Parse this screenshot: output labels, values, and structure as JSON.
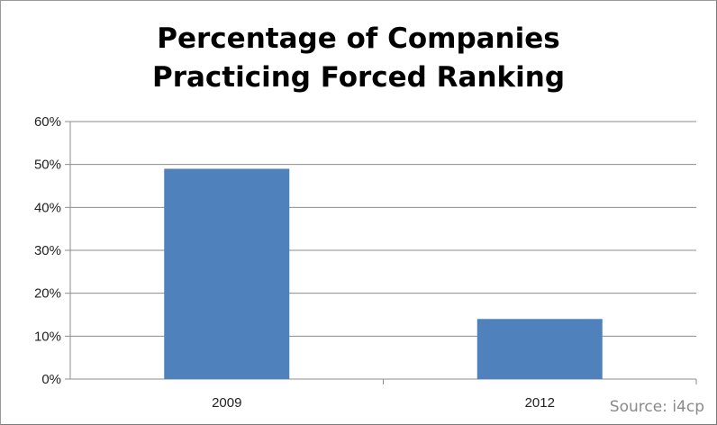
{
  "chart_data": {
    "type": "bar",
    "title_lines": [
      "Percentage of Companies",
      "Practicing Forced Ranking"
    ],
    "categories": [
      "2009",
      "2012"
    ],
    "series": [
      {
        "values": [
          49,
          14
        ]
      }
    ],
    "ylim": [
      0,
      60
    ],
    "y_ticks": [
      "0%",
      "10%",
      "20%",
      "30%",
      "40%",
      "50%",
      "60%"
    ],
    "y_tick_values": [
      0,
      10,
      20,
      30,
      40,
      50,
      60
    ],
    "grid": true,
    "bar_color": "#4f81bd",
    "source": "Source: i4cp"
  }
}
